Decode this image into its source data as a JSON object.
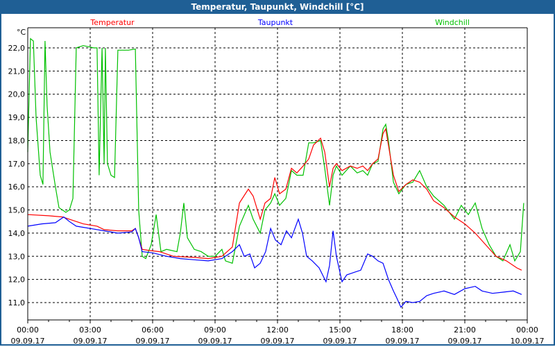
{
  "window": {
    "title": "Temperatur, Taupunkt, Windchill [°C]"
  },
  "chart_data": {
    "type": "line",
    "title": "Temperatur, Taupunkt, Windchill [°C]",
    "ylabel": "°C",
    "xlabel": "",
    "xlim_hours": [
      0,
      24
    ],
    "ylim": [
      10.3,
      22.9
    ],
    "grid": true,
    "legend_placement": "top",
    "yticks": [
      {
        "v": 22,
        "label": "22,0"
      },
      {
        "v": 21,
        "label": "21,0"
      },
      {
        "v": 20,
        "label": "20,0"
      },
      {
        "v": 19,
        "label": "19,0"
      },
      {
        "v": 18,
        "label": "18,0"
      },
      {
        "v": 17,
        "label": "17,0"
      },
      {
        "v": 16,
        "label": "16,0"
      },
      {
        "v": 15,
        "label": "15,0"
      },
      {
        "v": 14,
        "label": "14,0"
      },
      {
        "v": 13,
        "label": "13,0"
      },
      {
        "v": 12,
        "label": "12,0"
      },
      {
        "v": 11,
        "label": "11,0"
      }
    ],
    "xticks": [
      {
        "h": 0,
        "time": "00:00",
        "date": "09.09.17"
      },
      {
        "h": 3,
        "time": "03:00",
        "date": "09.09.17"
      },
      {
        "h": 6,
        "time": "06:00",
        "date": "09.09.17"
      },
      {
        "h": 9,
        "time": "09:00",
        "date": "09.09.17"
      },
      {
        "h": 12,
        "time": "12:00",
        "date": "09.09.17"
      },
      {
        "h": 15,
        "time": "15:00",
        "date": "09.09.17"
      },
      {
        "h": 18,
        "time": "18:00",
        "date": "09.09.17"
      },
      {
        "h": 21,
        "time": "21:00",
        "date": "09.09.17"
      },
      {
        "h": 24,
        "time": "00:00",
        "date": "10.09.17"
      }
    ],
    "series": [
      {
        "name": "Temperatur",
        "color": "#ff0000",
        "points": [
          [
            0,
            14.8
          ],
          [
            1,
            14.75
          ],
          [
            1.67,
            14.7
          ],
          [
            2.33,
            14.5
          ],
          [
            2.67,
            14.4
          ],
          [
            3.33,
            14.3
          ],
          [
            3.67,
            14.15
          ],
          [
            4.33,
            14.1
          ],
          [
            5,
            14.1
          ],
          [
            5.17,
            14.2
          ],
          [
            5.33,
            13.8
          ],
          [
            5.5,
            13.3
          ],
          [
            5.83,
            13.25
          ],
          [
            6.33,
            13.2
          ],
          [
            7,
            13.0
          ],
          [
            8,
            12.95
          ],
          [
            8.67,
            12.9
          ],
          [
            9.33,
            13.0
          ],
          [
            9.83,
            13.4
          ],
          [
            10.17,
            15.3
          ],
          [
            10.6,
            15.9
          ],
          [
            10.83,
            15.6
          ],
          [
            11.17,
            14.6
          ],
          [
            11.4,
            15.3
          ],
          [
            11.67,
            15.5
          ],
          [
            11.87,
            16.4
          ],
          [
            12.1,
            15.7
          ],
          [
            12.4,
            15.9
          ],
          [
            12.67,
            16.8
          ],
          [
            12.93,
            16.6
          ],
          [
            13.23,
            16.9
          ],
          [
            13.5,
            17.2
          ],
          [
            13.73,
            17.8
          ],
          [
            14.07,
            18.1
          ],
          [
            14.27,
            17.5
          ],
          [
            14.5,
            16.0
          ],
          [
            14.67,
            16.8
          ],
          [
            14.83,
            17.0
          ],
          [
            15.1,
            16.7
          ],
          [
            15.5,
            16.9
          ],
          [
            15.83,
            16.8
          ],
          [
            16.1,
            16.9
          ],
          [
            16.33,
            16.7
          ],
          [
            16.57,
            17.0
          ],
          [
            16.83,
            17.2
          ],
          [
            17.07,
            18.3
          ],
          [
            17.2,
            18.5
          ],
          [
            17.33,
            17.8
          ],
          [
            17.57,
            16.5
          ],
          [
            17.83,
            15.8
          ],
          [
            18.17,
            16.1
          ],
          [
            18.5,
            16.3
          ],
          [
            18.83,
            16.2
          ],
          [
            19.17,
            15.9
          ],
          [
            19.5,
            15.4
          ],
          [
            20,
            15.1
          ],
          [
            20.5,
            14.7
          ],
          [
            21,
            14.4
          ],
          [
            21.5,
            14.0
          ],
          [
            22,
            13.5
          ],
          [
            22.5,
            13.0
          ],
          [
            23,
            12.8
          ],
          [
            23.5,
            12.5
          ],
          [
            23.73,
            12.4
          ]
        ]
      },
      {
        "name": "Taupunkt",
        "color": "#0000ff",
        "points": [
          [
            0,
            14.3
          ],
          [
            0.67,
            14.4
          ],
          [
            1.33,
            14.45
          ],
          [
            1.73,
            14.7
          ],
          [
            2,
            14.5
          ],
          [
            2.33,
            14.3
          ],
          [
            3,
            14.2
          ],
          [
            3.67,
            14.1
          ],
          [
            4.33,
            14.0
          ],
          [
            5,
            14.05
          ],
          [
            5.17,
            14.2
          ],
          [
            5.33,
            13.8
          ],
          [
            5.5,
            13.2
          ],
          [
            6,
            13.15
          ],
          [
            6.67,
            13.0
          ],
          [
            7.33,
            12.9
          ],
          [
            8,
            12.85
          ],
          [
            8.67,
            12.8
          ],
          [
            9.33,
            12.9
          ],
          [
            9.83,
            13.2
          ],
          [
            10.17,
            13.5
          ],
          [
            10.4,
            13.0
          ],
          [
            10.67,
            13.1
          ],
          [
            10.9,
            12.5
          ],
          [
            11.17,
            12.7
          ],
          [
            11.43,
            13.2
          ],
          [
            11.67,
            14.2
          ],
          [
            11.9,
            13.7
          ],
          [
            12.17,
            13.5
          ],
          [
            12.43,
            14.1
          ],
          [
            12.67,
            13.8
          ],
          [
            13,
            14.6
          ],
          [
            13.2,
            14.0
          ],
          [
            13.4,
            13.0
          ],
          [
            13.67,
            12.8
          ],
          [
            14,
            12.5
          ],
          [
            14.33,
            11.9
          ],
          [
            14.5,
            12.6
          ],
          [
            14.67,
            14.1
          ],
          [
            14.83,
            13.0
          ],
          [
            15.1,
            11.9
          ],
          [
            15.33,
            12.2
          ],
          [
            15.67,
            12.3
          ],
          [
            16,
            12.4
          ],
          [
            16.33,
            13.1
          ],
          [
            16.57,
            13.0
          ],
          [
            16.83,
            12.8
          ],
          [
            17.07,
            12.7
          ],
          [
            17.33,
            12.0
          ],
          [
            17.57,
            11.5
          ],
          [
            17.73,
            11.2
          ],
          [
            17.93,
            10.8
          ],
          [
            18.17,
            11.05
          ],
          [
            18.5,
            11.0
          ],
          [
            18.83,
            11.05
          ],
          [
            19.17,
            11.3
          ],
          [
            19.5,
            11.4
          ],
          [
            20,
            11.5
          ],
          [
            20.5,
            11.35
          ],
          [
            21,
            11.6
          ],
          [
            21.5,
            11.7
          ],
          [
            21.83,
            11.5
          ],
          [
            22.33,
            11.4
          ],
          [
            22.83,
            11.45
          ],
          [
            23.33,
            11.5
          ],
          [
            23.73,
            11.35
          ]
        ]
      },
      {
        "name": "Windchill",
        "color": "#00c000",
        "points": [
          [
            0,
            17.5
          ],
          [
            0.13,
            22.4
          ],
          [
            0.27,
            22.3
          ],
          [
            0.4,
            19.0
          ],
          [
            0.6,
            16.5
          ],
          [
            0.73,
            16.1
          ],
          [
            0.83,
            22.3
          ],
          [
            0.93,
            19.5
          ],
          [
            1.07,
            17.5
          ],
          [
            1.33,
            16.0
          ],
          [
            1.5,
            15.1
          ],
          [
            1.83,
            14.9
          ],
          [
            2,
            15.0
          ],
          [
            2.17,
            15.5
          ],
          [
            2.33,
            22.0
          ],
          [
            2.67,
            22.1
          ],
          [
            3.17,
            22.0
          ],
          [
            3.33,
            22.0
          ],
          [
            3.43,
            16.5
          ],
          [
            3.57,
            22.0
          ],
          [
            3.67,
            17.0
          ],
          [
            3.73,
            22.0
          ],
          [
            3.83,
            17.0
          ],
          [
            4,
            16.5
          ],
          [
            4.17,
            16.4
          ],
          [
            4.33,
            21.9
          ],
          [
            4.83,
            21.9
          ],
          [
            5.17,
            21.95
          ],
          [
            5.33,
            15.0
          ],
          [
            5.5,
            13.0
          ],
          [
            5.67,
            12.9
          ],
          [
            5.93,
            13.5
          ],
          [
            6.17,
            14.8
          ],
          [
            6.4,
            13.2
          ],
          [
            6.67,
            13.3
          ],
          [
            7.17,
            13.2
          ],
          [
            7.33,
            14.0
          ],
          [
            7.5,
            15.3
          ],
          [
            7.67,
            13.8
          ],
          [
            8,
            13.3
          ],
          [
            8.33,
            13.2
          ],
          [
            8.67,
            13.0
          ],
          [
            9,
            13.0
          ],
          [
            9.33,
            13.3
          ],
          [
            9.5,
            12.8
          ],
          [
            9.83,
            12.7
          ],
          [
            10.17,
            14.3
          ],
          [
            10.6,
            15.2
          ],
          [
            10.83,
            14.6
          ],
          [
            11.17,
            14.0
          ],
          [
            11.4,
            15.0
          ],
          [
            11.67,
            15.3
          ],
          [
            11.87,
            15.7
          ],
          [
            12.1,
            15.2
          ],
          [
            12.4,
            15.5
          ],
          [
            12.67,
            16.7
          ],
          [
            12.93,
            16.5
          ],
          [
            13.23,
            16.5
          ],
          [
            13.5,
            17.9
          ],
          [
            13.73,
            17.9
          ],
          [
            14.07,
            18.0
          ],
          [
            14.27,
            16.8
          ],
          [
            14.5,
            15.2
          ],
          [
            14.67,
            16.5
          ],
          [
            14.83,
            16.9
          ],
          [
            15.1,
            16.5
          ],
          [
            15.5,
            16.9
          ],
          [
            15.83,
            16.6
          ],
          [
            16.1,
            16.7
          ],
          [
            16.33,
            16.5
          ],
          [
            16.57,
            17.0
          ],
          [
            16.83,
            17.1
          ],
          [
            17.07,
            18.5
          ],
          [
            17.2,
            18.7
          ],
          [
            17.33,
            18.0
          ],
          [
            17.57,
            16.2
          ],
          [
            17.83,
            15.7
          ],
          [
            18.17,
            16.1
          ],
          [
            18.5,
            16.2
          ],
          [
            18.83,
            16.7
          ],
          [
            19.17,
            16.0
          ],
          [
            19.5,
            15.6
          ],
          [
            20,
            15.2
          ],
          [
            20.5,
            14.6
          ],
          [
            20.83,
            15.2
          ],
          [
            21.17,
            14.8
          ],
          [
            21.5,
            15.3
          ],
          [
            21.83,
            14.2
          ],
          [
            22.17,
            13.5
          ],
          [
            22.5,
            13.0
          ],
          [
            22.83,
            12.8
          ],
          [
            23.17,
            13.5
          ],
          [
            23.4,
            12.8
          ],
          [
            23.67,
            13.2
          ],
          [
            23.83,
            15.3
          ]
        ]
      }
    ]
  }
}
